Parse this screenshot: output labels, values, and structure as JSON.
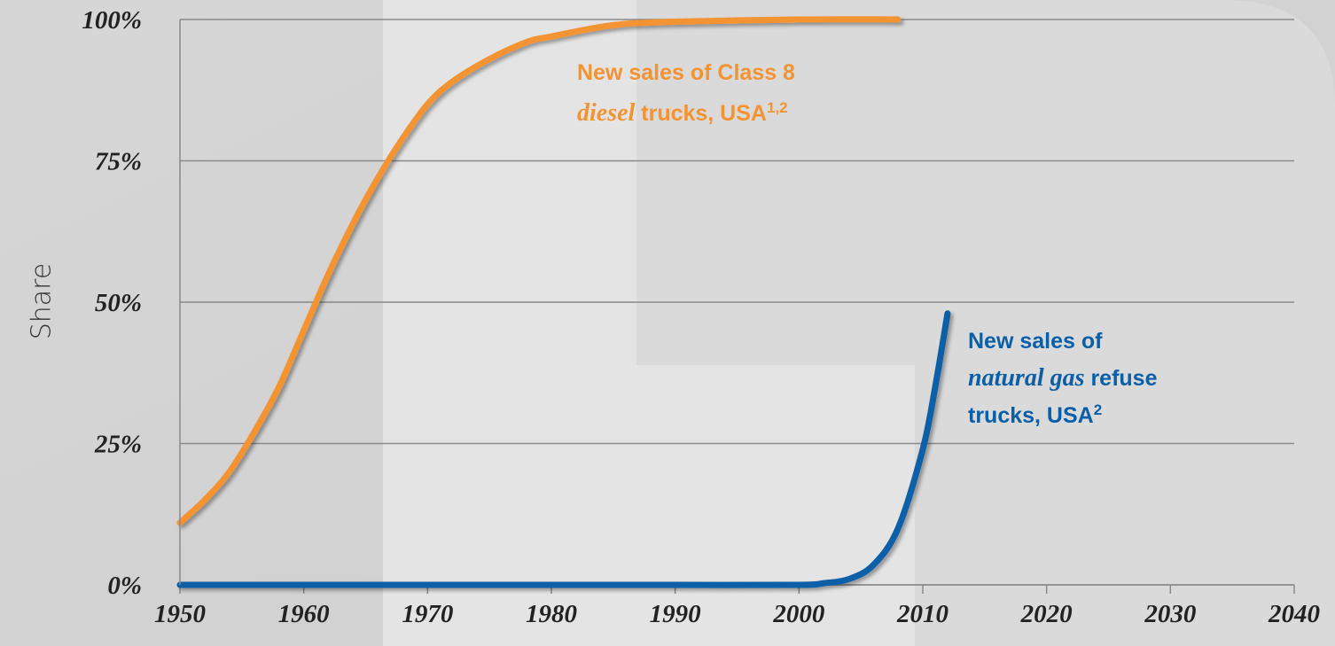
{
  "chart_data": {
    "type": "line",
    "ylabel": "Share",
    "xlim": [
      1950,
      2040
    ],
    "xticks": [
      1950,
      1960,
      1970,
      1980,
      1990,
      2000,
      2010,
      2020,
      2030,
      2040
    ],
    "ylim": [
      0,
      100
    ],
    "yticks": [
      {
        "value": 0,
        "label": "0%"
      },
      {
        "value": 25,
        "label": "25%"
      },
      {
        "value": 50,
        "label": "50%"
      },
      {
        "value": 75,
        "label": "75%"
      },
      {
        "value": 100,
        "label": "100%"
      }
    ],
    "grid": true,
    "series": [
      {
        "color": "#f39332",
        "x": [
          1950,
          1952,
          1954,
          1956,
          1958,
          1960,
          1962,
          1964,
          1966,
          1968,
          1970,
          1972,
          1975,
          1978,
          1980,
          1985,
          1990,
          2000,
          2008
        ],
        "values": [
          11,
          15,
          20,
          27,
          35,
          45,
          55,
          64,
          72,
          79,
          85,
          89,
          93,
          96,
          97,
          99,
          99.6,
          100,
          100
        ]
      },
      {
        "color": "#0a5fa8",
        "x": [
          1950,
          1960,
          1970,
          1980,
          1990,
          2000,
          2002,
          2004,
          2006,
          2008,
          2010,
          2011,
          2012
        ],
        "values": [
          0,
          0,
          0,
          0,
          0,
          0,
          0.3,
          1,
          3.5,
          10,
          24,
          35,
          48
        ]
      }
    ],
    "annotations": [
      {
        "color": "#f39332",
        "lines": [
          [
            {
              "text": "New sales of Class 8"
            }
          ],
          [
            {
              "text": "diesel",
              "italic": true
            },
            {
              "text": " trucks, USA"
            },
            {
              "text": "1,2",
              "sup": true
            }
          ]
        ]
      },
      {
        "color": "#0a5fa8",
        "lines": [
          [
            {
              "text": "New sales of"
            }
          ],
          [
            {
              "text": "natural gas",
              "italic": true
            },
            {
              "text": " refuse"
            }
          ],
          [
            {
              "text": "trucks, USA"
            },
            {
              "text": "2",
              "sup": true
            }
          ]
        ]
      }
    ]
  }
}
